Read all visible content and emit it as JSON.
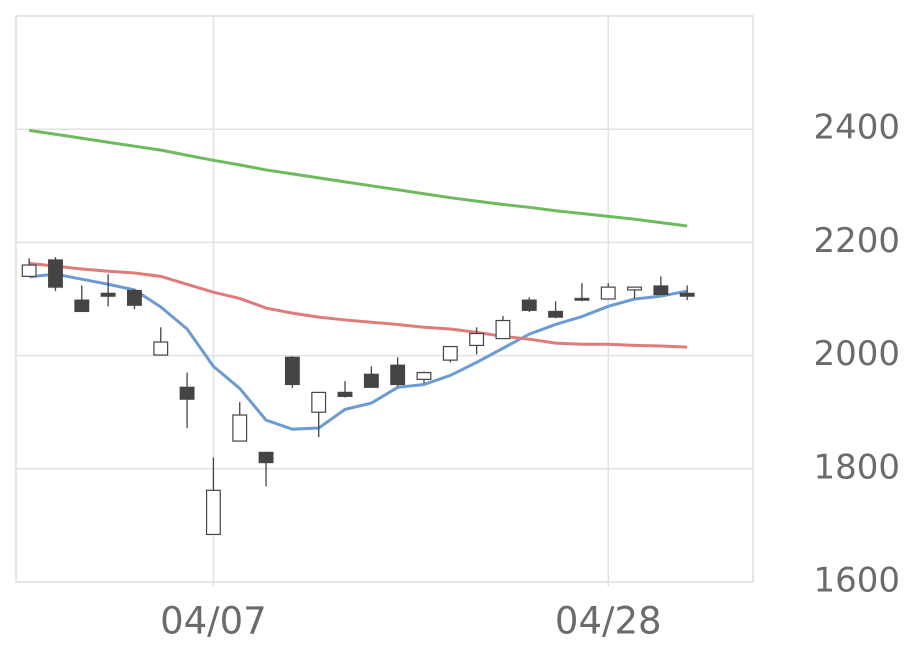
{
  "chart_data": {
    "type": "candlestick",
    "categories": [
      null,
      null,
      null,
      null,
      null,
      null,
      null,
      "04/07",
      null,
      null,
      null,
      null,
      null,
      null,
      null,
      null,
      null,
      null,
      null,
      null,
      null,
      null,
      "04/28",
      null,
      null,
      null
    ],
    "open": [
      2140,
      2169,
      2098,
      2110,
      2115,
      2001,
      1944,
      1684,
      1849,
      1829,
      1997,
      1900,
      1935,
      1967,
      1983,
      1958,
      1992,
      2018,
      2030,
      2098,
      2078,
      2101,
      2100,
      2116,
      2123,
      2110
    ],
    "high": [
      2172,
      2174,
      2124,
      2144,
      2117,
      2050,
      1970,
      1820,
      1918,
      1829,
      1999,
      1935,
      1955,
      1981,
      1997,
      1972,
      2016,
      2050,
      2070,
      2103,
      2096,
      2128,
      2128,
      2121,
      2140,
      2124
    ],
    "low": [
      2140,
      2114,
      2078,
      2087,
      2082,
      2001,
      1872,
      1684,
      1849,
      1769,
      1943,
      1856,
      1926,
      1944,
      1946,
      1951,
      1988,
      2002,
      2030,
      2077,
      2066,
      2096,
      2100,
      2101,
      2108,
      2098
    ],
    "close": [
      2160,
      2121,
      2078,
      2105,
      2089,
      2024,
      1923,
      1762,
      1895,
      1811,
      1949,
      1935,
      1928,
      1944,
      1949,
      1970,
      2016,
      2039,
      2062,
      2080,
      2068,
      2098,
      2121,
      2121,
      2108,
      2105
    ],
    "up_color": "#ffffff",
    "down_color": "#444444",
    "series": [
      {
        "color": "#6b9bd2",
        "values": [
          2139,
          2144,
          2135,
          2126,
          2116,
          2086,
          2047,
          1981,
          1942,
          1886,
          1870,
          1872,
          1905,
          1916,
          1944,
          1949,
          1965,
          1988,
          2013,
          2038,
          2055,
          2069,
          2087,
          2100,
          2105,
          2114
        ]
      },
      {
        "color": "#e07b7b",
        "values": [
          2163,
          2158,
          2153,
          2149,
          2146,
          2140,
          2126,
          2112,
          2101,
          2084,
          2075,
          2068,
          2063,
          2059,
          2055,
          2050,
          2047,
          2041,
          2034,
          2029,
          2022,
          2020,
          2020,
          2018,
          2017,
          2015
        ]
      },
      {
        "color": "#6dbb5e",
        "values": [
          2398,
          2391,
          2384,
          2377,
          2370,
          2363,
          2354,
          2345,
          2337,
          2328,
          2321,
          2314,
          2307,
          2300,
          2293,
          2286,
          2279,
          2273,
          2267,
          2262,
          2256,
          2251,
          2246,
          2241,
          2235,
          2229
        ]
      }
    ],
    "ylim": [
      1600,
      2600
    ],
    "yticks": [
      1600,
      1800,
      2000,
      2200,
      2400
    ],
    "grid": true
  }
}
